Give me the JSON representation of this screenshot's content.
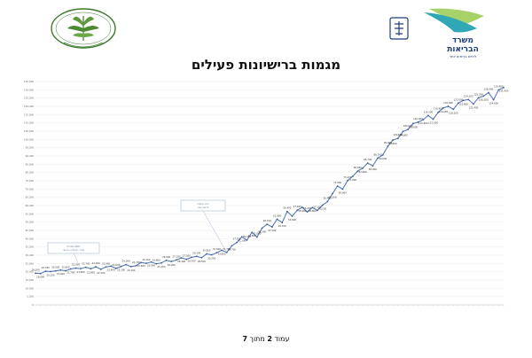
{
  "header": {
    "left_logo_icon": "cannabis-leaf-emblem-icon",
    "right_logo_icon": "ministry-of-health-logo-icon",
    "ministry_name_line1": "משרד",
    "ministry_name_line2": "הבריאות",
    "ministry_tagline": "לחיים בריאים יותר",
    "title": "מגמות ברישיונות פעילים"
  },
  "colors": {
    "line": "#5b7bb5",
    "marker": "#3f5f99",
    "grid": "#e8e8e8",
    "annotation": "#4a6fa5",
    "logo_teal": "#2fa7b5",
    "logo_navy": "#1d3d7a",
    "emblem_green": "#3d7a2e"
  },
  "annotations": [
    {
      "text_line1": "2017 מתחילת",
      "text_line2": "מעבר לרגולציה החדשה"
    },
    {
      "text_line1": "שינוי רגולציה",
      "text_line2": "מרשם רפואי"
    }
  ],
  "footer": {
    "prefix": "עמוד",
    "page": "2",
    "middle": "מתוך",
    "total": "7"
  },
  "chart_data": {
    "type": "line",
    "title": "מגמות ברישיונות פעילים",
    "xlabel": "",
    "ylabel": "",
    "ylim": [
      0,
      135000
    ],
    "y_tick_step": 5000,
    "grid": true,
    "legend": "none",
    "series": [
      {
        "values": [
          19100,
          18900,
          20300,
          20100,
          20500,
          21000,
          20600,
          21700,
          22200,
          21900,
          22700,
          21800,
          23000,
          21500,
          22900,
          23400,
          22000,
          23200,
          24300,
          23100,
          23700,
          25600,
          25100,
          25900,
          24800,
          25300,
          26900,
          26200,
          27100,
          28400,
          27500,
          28700,
          29300,
          28500,
          30800,
          30200,
          31500,
          33000,
          31700,
          35700,
          37700,
          41100,
          39100,
          43800,
          41000,
          46300,
          48700,
          47100,
          51800,
          49700,
          56400,
          53600,
          57200,
          58900,
          56200,
          58800,
          57100,
          60200,
          62400,
          67200,
          71800,
          69900,
          75100,
          77600,
          80800,
          82600,
          85700,
          84000,
          88700,
          90600,
          95900,
          99600,
          100600,
          104800,
          106000,
          109600,
          110400,
          111900,
          114500,
          112200,
          116400,
          119000,
          120000,
          118200,
          122000,
          123600,
          124100,
          121400,
          125200,
          126200,
          128300,
          124000,
          129900,
          131400
        ]
      }
    ]
  }
}
